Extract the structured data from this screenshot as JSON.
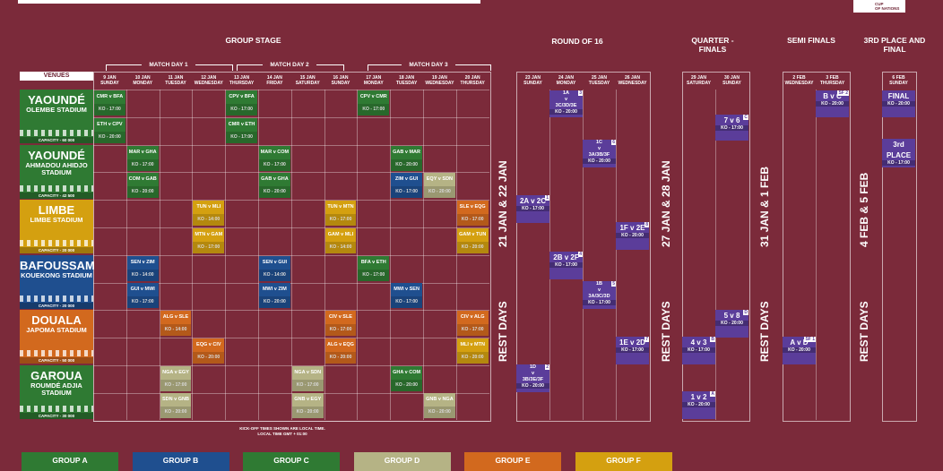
{
  "logo": {
    "line1": "CUP",
    "line2": "OF NATIONS"
  },
  "stages": {
    "group_stage": "GROUP STAGE",
    "round_of_16": "ROUND OF 16",
    "quarter_finals": "QUARTER - FINALS",
    "semi_finals": "SEMI FINALS",
    "third_and_final": "3RD PLACE AND FINAL"
  },
  "matchdays": [
    "MATCH DAY 1",
    "MATCH DAY 2",
    "MATCH DAY 3"
  ],
  "venues_header": "VENUES",
  "group_dates": [
    [
      "9 JAN",
      "SUNDAY"
    ],
    [
      "10 JAN",
      "MONDAY"
    ],
    [
      "11 JAN",
      "TUESDAY"
    ],
    [
      "12 JAN",
      "WEDNESDAY"
    ],
    [
      "13 JAN",
      "THURSDAY"
    ],
    [
      "14 JAN",
      "FRIDAY"
    ],
    [
      "15 JAN",
      "SATURDAY"
    ],
    [
      "16 JAN",
      "SUNDAY"
    ],
    [
      "17 JAN",
      "MONDAY"
    ],
    [
      "18 JAN",
      "TUESDAY"
    ],
    [
      "19 JAN",
      "WEDNESDAY"
    ],
    [
      "20 JAN",
      "THURSDAY"
    ]
  ],
  "r16_dates": [
    [
      "23 JAN",
      "SUNDAY"
    ],
    [
      "24 JAN",
      "MONDAY"
    ],
    [
      "25 JAN",
      "TUESDAY"
    ],
    [
      "26 JAN",
      "WEDNESDAY"
    ]
  ],
  "qf_dates": [
    [
      "29 JAN",
      "SATURDAY"
    ],
    [
      "30 JAN",
      "SUNDAY"
    ]
  ],
  "sf_dates": [
    [
      "2 FEB",
      "WEDNESDAY"
    ],
    [
      "3 FEB",
      "THURSDAY"
    ]
  ],
  "final_dates": [
    [
      "6 FEB",
      "SUNDAY"
    ]
  ],
  "venues": [
    {
      "city": "YAOUNDÉ",
      "stadium": "OLEMBE STADIUM",
      "capacity": "CAPACITY - 60 000",
      "color": "#2f7a33"
    },
    {
      "city": "YAOUNDÉ",
      "stadium": "AHMADOU AHIDJO STADIUM",
      "capacity": "CAPACITY - 42 500",
      "color": "#2f7a33"
    },
    {
      "city": "LIMBE",
      "stadium": "LIMBE STADIUM",
      "capacity": "CAPACITY - 20 000",
      "color": "#d4a010"
    },
    {
      "city": "BAFOUSSAM",
      "stadium": "KOUEKONG STADIUM",
      "capacity": "CAPACITY - 20 000",
      "color": "#1f4f8f"
    },
    {
      "city": "DOUALA",
      "stadium": "JAPOMA STADIUM",
      "capacity": "CAPACITY - 50 000",
      "color": "#d2691e"
    },
    {
      "city": "GAROUA",
      "stadium": "ROUMDÉ ADJIA STADIUM",
      "capacity": "CAPACITY - 30 000",
      "color": "#2f7a33"
    }
  ],
  "matches": [
    {
      "row": 0,
      "col": 0,
      "teams": "CMR v BFA",
      "ko": "KO - 17:00",
      "g": "A"
    },
    {
      "row": 1,
      "col": 0,
      "teams": "ETH v CPV",
      "ko": "KO - 20:00",
      "g": "A"
    },
    {
      "row": 0,
      "col": 4,
      "teams": "CPV v BFA",
      "ko": "KO - 17:00",
      "g": "A"
    },
    {
      "row": 1,
      "col": 4,
      "teams": "CMR v ETH",
      "ko": "KO - 17:00",
      "g": "A"
    },
    {
      "row": 0,
      "col": 8,
      "teams": "CPV v CMR",
      "ko": "KO - 17:00",
      "g": "A"
    },
    {
      "row": 2,
      "col": 1,
      "teams": "MAR v GHA",
      "ko": "KO - 17:00",
      "g": "C"
    },
    {
      "row": 3,
      "col": 1,
      "teams": "COM v GAB",
      "ko": "KO - 20:00",
      "g": "C"
    },
    {
      "row": 2,
      "col": 5,
      "teams": "MAR v COM",
      "ko": "KO - 17:00",
      "g": "C"
    },
    {
      "row": 3,
      "col": 5,
      "teams": "GAB v GHA",
      "ko": "KO - 20:00",
      "g": "C"
    },
    {
      "row": 2,
      "col": 9,
      "teams": "GAB v MAR",
      "ko": "KO - 20:00",
      "g": "C"
    },
    {
      "row": 3,
      "col": 9,
      "teams": "ZIM v GUI",
      "ko": "KO - 17:00",
      "g": "B"
    },
    {
      "row": 3,
      "col": 10,
      "teams": "EQY v SDN",
      "ko": "KO - 20:00",
      "g": "D"
    },
    {
      "row": 4,
      "col": 3,
      "teams": "TUN v MLI",
      "ko": "KO - 14:00",
      "g": "F"
    },
    {
      "row": 5,
      "col": 3,
      "teams": "MTN v GAM",
      "ko": "KO - 17:00",
      "g": "F"
    },
    {
      "row": 4,
      "col": 7,
      "teams": "TUN v MTN",
      "ko": "KO - 17:00",
      "g": "F"
    },
    {
      "row": 5,
      "col": 7,
      "teams": "GAM v MLI",
      "ko": "KO - 14:00",
      "g": "F"
    },
    {
      "row": 4,
      "col": 11,
      "teams": "SLE v EQG",
      "ko": "KO - 17:00",
      "g": "E"
    },
    {
      "row": 5,
      "col": 11,
      "teams": "GAM v TUN",
      "ko": "KO - 20:00",
      "g": "F"
    },
    {
      "row": 6,
      "col": 1,
      "teams": "SEN v ZIM",
      "ko": "KO - 14:00",
      "g": "B"
    },
    {
      "row": 7,
      "col": 1,
      "teams": "GUI v MWI",
      "ko": "KO - 17:00",
      "g": "B"
    },
    {
      "row": 6,
      "col": 5,
      "teams": "SEN v GUI",
      "ko": "KO - 14:00",
      "g": "B"
    },
    {
      "row": 7,
      "col": 5,
      "teams": "MWI v ZIM",
      "ko": "KO - 20:00",
      "g": "B"
    },
    {
      "row": 6,
      "col": 8,
      "teams": "BFA v ETH",
      "ko": "KO - 17:00",
      "g": "A"
    },
    {
      "row": 7,
      "col": 9,
      "teams": "MWI v SEN",
      "ko": "KO - 17:00",
      "g": "B"
    },
    {
      "row": 8,
      "col": 2,
      "teams": "ALG v SLE",
      "ko": "KO - 14:00",
      "g": "E"
    },
    {
      "row": 9,
      "col": 3,
      "teams": "EQG v CIV",
      "ko": "KO - 20:00",
      "g": "E"
    },
    {
      "row": 8,
      "col": 7,
      "teams": "CIV v SLE",
      "ko": "KO - 17:00",
      "g": "E"
    },
    {
      "row": 9,
      "col": 7,
      "teams": "ALG v EQG",
      "ko": "KO - 20:00",
      "g": "E"
    },
    {
      "row": 8,
      "col": 11,
      "teams": "CIV v ALG",
      "ko": "KO - 17:00",
      "g": "E"
    },
    {
      "row": 9,
      "col": 11,
      "teams": "MLI v MTN",
      "ko": "KO - 20:00",
      "g": "F"
    },
    {
      "row": 10,
      "col": 2,
      "teams": "NGA v EGY",
      "ko": "KO - 17:00",
      "g": "D"
    },
    {
      "row": 11,
      "col": 2,
      "teams": "SDN v GNB",
      "ko": "KO - 20:00",
      "g": "D"
    },
    {
      "row": 10,
      "col": 6,
      "teams": "NGA v SDN",
      "ko": "KO - 17:00",
      "g": "D"
    },
    {
      "row": 11,
      "col": 6,
      "teams": "GNB v EGY",
      "ko": "KO - 20:00",
      "g": "D"
    },
    {
      "row": 10,
      "col": 9,
      "teams": "GHA v COM",
      "ko": "KO - 20:00",
      "g": "C"
    },
    {
      "row": 11,
      "col": 10,
      "teams": "GNB v NGA",
      "ko": "KO - 20:00",
      "g": "D"
    }
  ],
  "ko_matches": [
    {
      "id": "r16-1a",
      "tag": "3",
      "lines": [
        "1A",
        "v",
        "3C/3D/3E"
      ],
      "ko": "KO - 20:00"
    },
    {
      "id": "r16-1c",
      "tag": "6",
      "lines": [
        "1C",
        "v",
        "3A/3B/3F"
      ],
      "ko": "KO - 20:00"
    },
    {
      "id": "r16-2a2c",
      "tag": "1",
      "lines": [
        "2A v 2C"
      ],
      "ko": "KO - 17:00"
    },
    {
      "id": "r16-1f2e",
      "tag": "8",
      "lines": [
        "1F v 2E"
      ],
      "ko": "KO - 20:00"
    },
    {
      "id": "r16-2b2f",
      "tag": "4",
      "lines": [
        "2B v 2F"
      ],
      "ko": "KO - 17:00"
    },
    {
      "id": "r16-1b",
      "tag": "5",
      "lines": [
        "1B",
        "v",
        "3A/3C/3D"
      ],
      "ko": "KO - 17:00"
    },
    {
      "id": "r16-1e2d",
      "tag": "7",
      "lines": [
        "1E v 2D"
      ],
      "ko": "KO - 17:00"
    },
    {
      "id": "r16-1d",
      "tag": "2",
      "lines": [
        "1D",
        "v",
        "3B/3E/3F"
      ],
      "ko": "KO - 20:00"
    },
    {
      "id": "qf-7v6",
      "tag": "C",
      "lines": [
        "7 v 6"
      ],
      "ko": "KO - 17:00"
    },
    {
      "id": "qf-5v8",
      "tag": "D",
      "lines": [
        "5 v 8"
      ],
      "ko": "KO - 20:00"
    },
    {
      "id": "qf-4v3",
      "tag": "B",
      "lines": [
        "4 v 3"
      ],
      "ko": "KO - 17:00"
    },
    {
      "id": "qf-1v2",
      "tag": "A",
      "lines": [
        "1 v 2"
      ],
      "ko": "KO - 20:00"
    },
    {
      "id": "sf-bvc",
      "tag": "SF 2",
      "lines": [
        "B v C"
      ],
      "ko": "KO - 20:00"
    },
    {
      "id": "sf-avd",
      "tag": "SF 1",
      "lines": [
        "A v D"
      ],
      "ko": "KO - 20:00"
    },
    {
      "id": "final",
      "tag": "",
      "lines": [
        "FINAL"
      ],
      "ko": "KO - 20:00"
    },
    {
      "id": "third",
      "tag": "",
      "lines": [
        "3rd",
        "PLACE"
      ],
      "ko": "KO - 17:00"
    }
  ],
  "rest_days": [
    {
      "dates": "21 JAN & 22 JAN",
      "label": "REST DAYS"
    },
    {
      "dates": "27 JAN & 28 JAN",
      "label": "REST DAYS"
    },
    {
      "dates": "31 JAN & 1 FEB",
      "label": "REST DAYS"
    },
    {
      "dates": "4 FEB & 5 FEB",
      "label": "REST DAYS"
    }
  ],
  "note": {
    "line1": "KICK-OFF TIMES SHOWN ARE LOCAL TIME.",
    "line2": "LOCAL TIME GMT + 01:00"
  },
  "legend": [
    {
      "label": "GROUP A",
      "color": "#2f7a33"
    },
    {
      "label": "GROUP B",
      "color": "#1f4f8f"
    },
    {
      "label": "GROUP C",
      "color": "#2f7a33"
    },
    {
      "label": "GROUP D",
      "color": "#b5b385"
    },
    {
      "label": "GROUP E",
      "color": "#d2691e"
    },
    {
      "label": "GROUP F",
      "color": "#d4a010"
    }
  ],
  "group_colors": {
    "A": "#2f7a33",
    "B": "#1f4f8f",
    "C": "#2f7a33",
    "D": "#b5b385",
    "E": "#d2691e",
    "F": "#d4a010"
  }
}
